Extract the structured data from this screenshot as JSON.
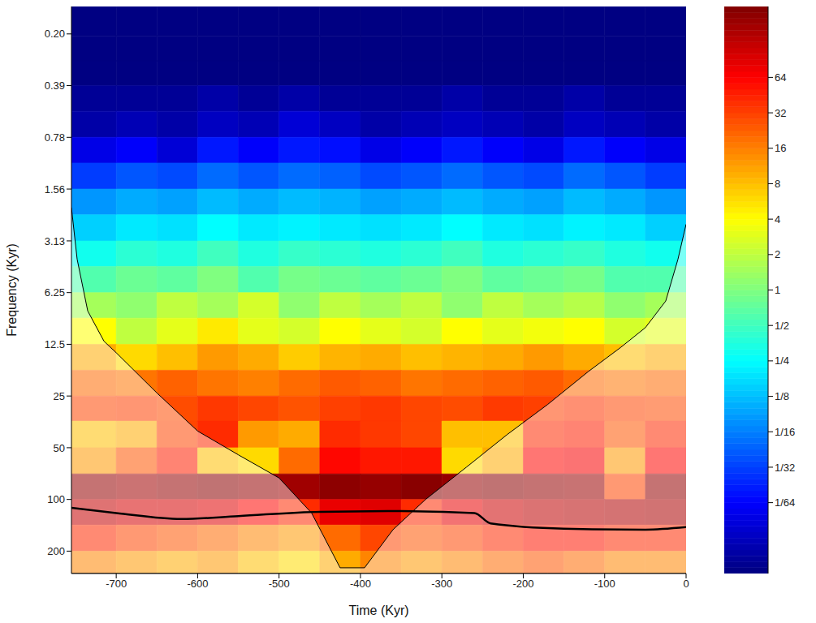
{
  "chart_data": {
    "type": "heatmap",
    "xlabel": "Time (Kyr)",
    "ylabel": "Frequency (Kyr)",
    "log": "y",
    "xlim": [
      -755,
      0
    ],
    "xticks": [
      -700,
      -600,
      -500,
      -400,
      -300,
      -200,
      -100,
      0
    ],
    "ylim": [
      0.135,
      270
    ],
    "yticks": [
      {
        "value": 0.195,
        "label": "0.20"
      },
      0.39,
      0.78,
      1.56,
      {
        "value": 3.125,
        "label": "3.13"
      },
      6.25,
      12.5,
      25,
      50,
      100,
      200
    ],
    "x_edges": [
      -755,
      -700,
      -650,
      -600,
      -550,
      -500,
      -450,
      -400,
      -350,
      -300,
      -250,
      -200,
      -150,
      -100,
      -50,
      0
    ],
    "y_edges": [
      0.135,
      0.2,
      0.28,
      0.39,
      0.55,
      0.78,
      1.1,
      1.56,
      2.2,
      3.13,
      4.4,
      6.25,
      8.8,
      12.5,
      17.7,
      25,
      35,
      50,
      71,
      100,
      141,
      200,
      270
    ],
    "cells": [
      [
        0.004,
        0.004,
        0.004,
        0.004,
        0.004,
        0.004,
        0.004,
        0.004,
        0.004,
        0.004,
        0.004,
        0.004,
        0.004,
        0.004,
        0.004
      ],
      [
        0.004,
        0.004,
        0.004,
        0.004,
        0.004,
        0.004,
        0.004,
        0.004,
        0.004,
        0.004,
        0.004,
        0.004,
        0.004,
        0.004,
        0.004
      ],
      [
        0.004,
        0.004,
        0.004,
        0.004,
        0.004,
        0.004,
        0.004,
        0.004,
        0.004,
        0.004,
        0.004,
        0.004,
        0.004,
        0.004,
        0.004
      ],
      [
        0.005,
        0.005,
        0.005,
        0.006,
        0.005,
        0.006,
        0.005,
        0.005,
        0.005,
        0.006,
        0.005,
        0.005,
        0.006,
        0.005,
        0.005
      ],
      [
        0.006,
        0.007,
        0.006,
        0.008,
        0.007,
        0.01,
        0.008,
        0.006,
        0.007,
        0.008,
        0.007,
        0.006,
        0.008,
        0.007,
        0.006
      ],
      [
        0.012,
        0.015,
        0.01,
        0.02,
        0.015,
        0.02,
        0.018,
        0.012,
        0.015,
        0.02,
        0.015,
        0.012,
        0.02,
        0.015,
        0.012
      ],
      [
        0.03,
        0.04,
        0.035,
        0.05,
        0.04,
        0.05,
        0.045,
        0.035,
        0.04,
        0.05,
        0.04,
        0.035,
        0.05,
        0.04,
        0.03
      ],
      [
        0.08,
        0.1,
        0.09,
        0.12,
        0.1,
        0.12,
        0.11,
        0.09,
        0.1,
        0.12,
        0.1,
        0.09,
        0.12,
        0.1,
        0.08
      ],
      [
        0.15,
        0.2,
        0.18,
        0.25,
        0.2,
        0.22,
        0.2,
        0.18,
        0.2,
        0.25,
        0.2,
        0.18,
        0.22,
        0.2,
        0.15
      ],
      [
        0.3,
        0.4,
        0.35,
        0.5,
        0.35,
        0.45,
        0.4,
        0.35,
        0.4,
        0.5,
        0.35,
        0.4,
        0.45,
        0.35,
        0.3
      ],
      [
        0.6,
        0.8,
        0.7,
        1,
        0.6,
        0.9,
        0.8,
        0.7,
        0.8,
        1,
        0.7,
        0.8,
        0.9,
        0.6,
        0.6
      ],
      [
        1.5,
        1.2,
        2,
        1.5,
        2.5,
        1.2,
        2,
        1.5,
        2,
        1.2,
        2,
        1.5,
        1.8,
        1.2,
        1.5
      ],
      [
        4,
        2,
        3,
        5,
        3,
        2.5,
        4,
        3,
        2.5,
        4,
        3,
        3.5,
        4,
        2.5,
        3
      ],
      [
        10,
        6,
        8,
        12,
        10,
        7,
        9,
        10,
        8,
        9,
        10,
        12,
        10,
        8,
        10
      ],
      [
        20,
        18,
        22,
        18,
        16,
        20,
        24,
        22,
        18,
        20,
        22,
        24,
        20,
        18,
        20
      ],
      [
        30,
        32,
        28,
        35,
        30,
        26,
        32,
        35,
        30,
        28,
        34,
        32,
        36,
        30,
        28
      ],
      [
        8,
        10,
        30,
        40,
        12,
        10,
        40,
        35,
        30,
        8,
        8,
        40,
        45,
        25,
        40
      ],
      [
        12,
        25,
        45,
        8,
        6,
        20,
        60,
        50,
        50,
        6,
        10,
        60,
        70,
        12,
        60
      ],
      [
        200,
        180,
        200,
        220,
        200,
        180,
        220,
        200,
        230,
        200,
        220,
        200,
        190,
        30,
        200
      ],
      [
        120,
        100,
        100,
        90,
        60,
        40,
        80,
        90,
        40,
        80,
        110,
        130,
        140,
        150,
        160
      ],
      [
        40,
        30,
        25,
        20,
        15,
        12,
        20,
        30,
        25,
        30,
        40,
        50,
        50,
        40,
        40
      ],
      [
        15,
        12,
        10,
        12,
        8,
        6,
        10,
        15,
        12,
        15,
        20,
        25,
        20,
        15,
        15
      ]
    ],
    "cone_of_influence": {
      "x": [
        -755,
        -748,
        -735,
        -715,
        -700,
        -650,
        -600,
        -550,
        -500,
        -460,
        -425,
        -395,
        -360,
        -320,
        -270,
        -220,
        -170,
        -120,
        -80,
        -50,
        -25,
        -10,
        0
      ],
      "y": [
        2,
        4,
        8,
        12,
        14,
        24,
        40,
        55,
        75,
        120,
        250,
        250,
        150,
        100,
        65,
        42,
        28,
        18,
        13,
        10,
        7,
        4,
        2.5
      ]
    },
    "significance_contour": {
      "x": [
        -755,
        -700,
        -620,
        -550,
        -450,
        -350,
        -260,
        -240,
        -150,
        -50,
        0
      ],
      "y": [
        112,
        120,
        130,
        125,
        118,
        117,
        120,
        138,
        148,
        150,
        145
      ]
    },
    "colorbar": {
      "range": [
        0.00390625,
        256
      ],
      "ticks": [
        64,
        32,
        16,
        8,
        4,
        2,
        1,
        {
          "value": 0.5,
          "label": "1/2"
        },
        {
          "value": 0.25,
          "label": "1/4"
        },
        {
          "value": 0.125,
          "label": "1/8"
        },
        {
          "value": 0.0625,
          "label": "1/16"
        },
        {
          "value": 0.03125,
          "label": "1/32"
        },
        {
          "value": 0.015625,
          "label": "1/64"
        }
      ]
    }
  }
}
